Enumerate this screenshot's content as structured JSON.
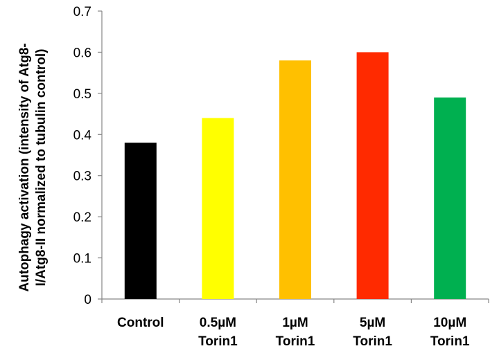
{
  "chart_data": {
    "type": "bar",
    "categories": [
      [
        "Control"
      ],
      [
        "0.5µM",
        "Torin1"
      ],
      [
        "1µM",
        "Torin1"
      ],
      [
        "5µM",
        "Torin1"
      ],
      [
        "10µM",
        "Torin1"
      ]
    ],
    "values": [
      0.38,
      0.44,
      0.58,
      0.6,
      0.49
    ],
    "colors": [
      "#000000",
      "#ffff00",
      "#ffc000",
      "#ff2a00",
      "#00b050"
    ],
    "title": "",
    "xlabel": "",
    "ylabel": {
      "line1": "Autophagy activation (intensity of Atg8-",
      "line2": "I/Atg8-II normalized to tubulin control)"
    },
    "ylim": [
      0,
      0.7
    ],
    "yticks": [
      0,
      0.1,
      0.2,
      0.3,
      0.4,
      0.5,
      0.6,
      0.7
    ],
    "grid": false,
    "legend": "none"
  }
}
